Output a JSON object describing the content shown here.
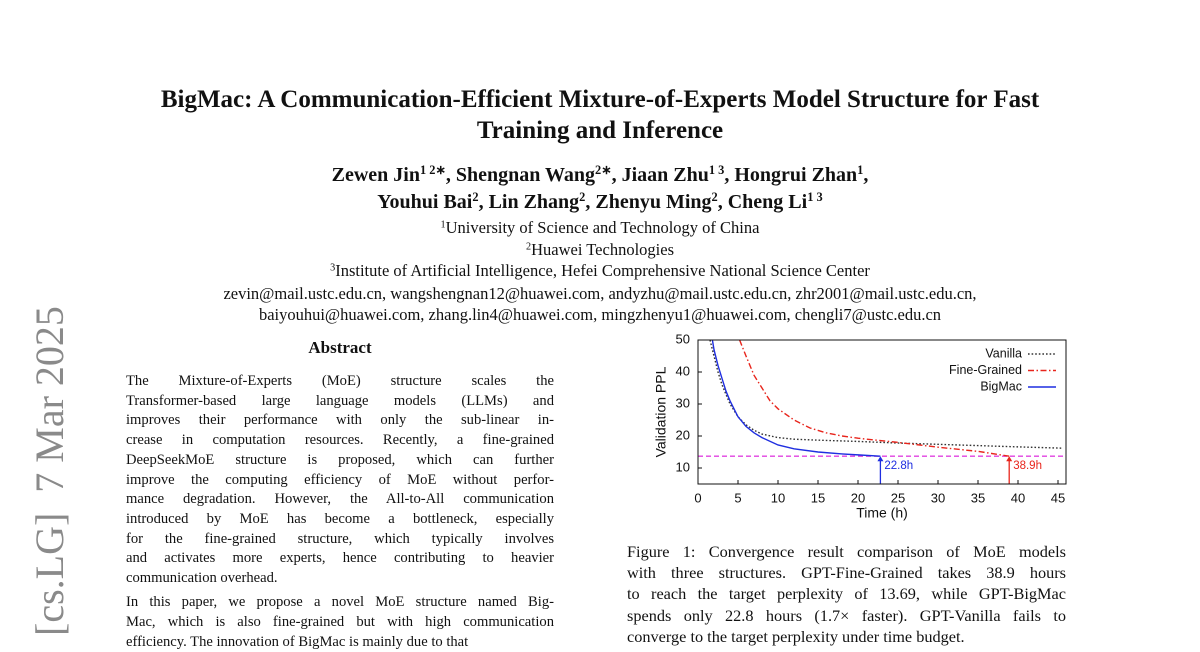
{
  "arxiv_stamp": "[cs.LG]  7 Mar 2025",
  "header": {
    "title_lines": [
      "BigMac: A Communication-Efficient Mixture-of-Experts Model Structure for Fast",
      "Training and Inference"
    ],
    "author_lines": [
      [
        {
          "name": "Zewen Jin",
          "sup": "1 2∗",
          "sep": ", "
        },
        {
          "name": "Shengnan Wang",
          "sup": "2∗",
          "sep": ", "
        },
        {
          "name": "Jiaan Zhu",
          "sup": "1 3",
          "sep": ", "
        },
        {
          "name": "Hongrui Zhan",
          "sup": "1",
          "sep": ","
        }
      ],
      [
        {
          "name": "Youhui Bai",
          "sup": "2",
          "sep": ", "
        },
        {
          "name": "Lin Zhang",
          "sup": "2",
          "sep": ", "
        },
        {
          "name": "Zhenyu Ming",
          "sup": "2",
          "sep": ", "
        },
        {
          "name": "Cheng Li",
          "sup": "1 3"
        }
      ]
    ],
    "affiliations": [
      {
        "sup": "1",
        "text": "University of Science and Technology of China"
      },
      {
        "sup": "2",
        "text": "Huawei Technologies"
      },
      {
        "sup": "3",
        "text": "Institute of Artificial Intelligence, Hefei Comprehensive National Science Center"
      }
    ],
    "email_lines": [
      "zevin@mail.ustc.edu.cn, wangshengnan12@huawei.com, andyzhu@mail.ustc.edu.cn, zhr2001@mail.ustc.edu.cn,",
      "baiyouhui@huawei.com, zhang.lin4@huawei.com, mingzhenyu1@huawei.com, chengli7@ustc.edu.cn"
    ]
  },
  "abstract": {
    "heading": "Abstract",
    "paragraphs": [
      [
        "The Mixture-of-Experts (MoE) structure scales the",
        "Transformer-based large language models (LLMs) and",
        "improves their performance with only the sub-linear in-",
        "crease in computation resources. Recently, a fine-grained",
        "DeepSeekMoE structure is proposed, which can further",
        "improve the computing efficiency of MoE without perfor-",
        "mance degradation. However, the All-to-All communication",
        "introduced by MoE has become a bottleneck, especially",
        "for the fine-grained structure, which typically involves",
        "and activates more experts, hence contributing to heavier",
        "communication overhead."
      ],
      [
        "In this paper, we propose a novel MoE structure named Big-",
        "Mac, which is also fine-grained but with high communication",
        "efficiency. The innovation of BigMac is mainly due to that"
      ]
    ]
  },
  "chart_data": {
    "type": "line",
    "xlabel": "Time (h)",
    "ylabel": "Validation PPL",
    "xlim": [
      0,
      46
    ],
    "ylim": [
      5,
      50
    ],
    "xticks": [
      0,
      5,
      10,
      15,
      20,
      25,
      30,
      35,
      40,
      45
    ],
    "yticks": [
      10,
      20,
      30,
      40,
      50
    ],
    "legend": "upper right",
    "series": [
      {
        "name": "Vanilla",
        "color": "#333333",
        "style": "dotted",
        "x": [
          1.5,
          2,
          2.5,
          3,
          4,
          5,
          6,
          7,
          8,
          10,
          12,
          15,
          20,
          25,
          30,
          35,
          40,
          45.5
        ],
        "values": [
          50,
          45,
          40,
          36,
          30,
          26,
          23.5,
          21.8,
          20.6,
          19.5,
          19,
          18.7,
          18.3,
          17.8,
          17.4,
          17,
          16.6,
          16.2
        ]
      },
      {
        "name": "Fine-Grained",
        "color": "#e8251c",
        "style": "dashdot",
        "x": [
          5.2,
          6,
          7,
          8,
          9,
          10,
          12,
          14,
          16,
          18,
          20,
          25,
          30,
          35,
          38.9
        ],
        "values": [
          50,
          45,
          39,
          35,
          31,
          28.5,
          25,
          22.5,
          21,
          20,
          19.3,
          18,
          16.5,
          15.2,
          13.69
        ]
      },
      {
        "name": "BigMac",
        "color": "#1f2ee0",
        "style": "solid",
        "x": [
          1.8,
          2,
          2.5,
          3,
          3.5,
          4,
          5,
          6,
          7,
          8,
          10,
          12,
          15,
          18,
          20,
          22.8
        ],
        "values": [
          50,
          47,
          42,
          38,
          34,
          31,
          26,
          23,
          21,
          19.5,
          17.2,
          16,
          15,
          14.4,
          14.1,
          13.69
        ]
      }
    ],
    "target": {
      "value": 13.69,
      "color": "#e040e0"
    },
    "annotations": [
      {
        "x": 22.8,
        "label": "22.8h",
        "color": "#1f2ee0"
      },
      {
        "x": 38.9,
        "label": "38.9h",
        "color": "#e8251c"
      }
    ],
    "caption_lines": [
      "Figure 1: Convergence result comparison of MoE models",
      "with three structures. GPT-Fine-Grained takes 38.9 hours",
      "to reach the target perplexity of 13.69, while GPT-BigMac",
      "spends only 22.8 hours (1.7× faster). GPT-Vanilla fails to",
      "converge to the target perplexity under time budget."
    ]
  }
}
